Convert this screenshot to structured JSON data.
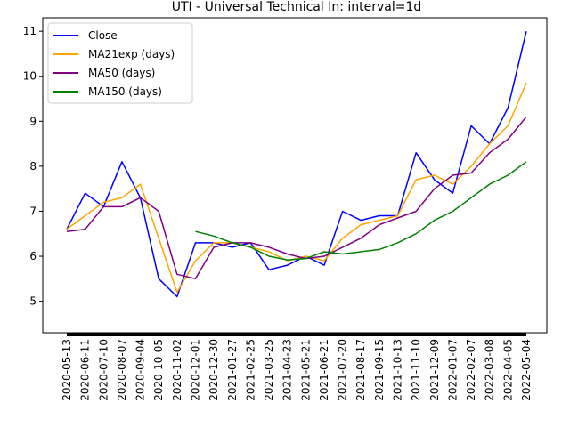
{
  "chart_data": {
    "type": "line",
    "title": "UTI - Universal Technical In: interval=1d",
    "xlabel": "",
    "ylabel": "",
    "ylim": [
      4.3,
      11.3
    ],
    "y_ticks": [
      5,
      6,
      7,
      8,
      9,
      10,
      11
    ],
    "x_tick_labels": [
      "2020-05-13",
      "2020-06-11",
      "2020-07-10",
      "2020-08-07",
      "2020-09-04",
      "2020-10-05",
      "2020-11-02",
      "2020-12-01",
      "2020-12-30",
      "2021-01-27",
      "2021-02-25",
      "2021-03-25",
      "2021-04-23",
      "2021-05-21",
      "2021-06-21",
      "2021-07-20",
      "2021-08-17",
      "2021-09-15",
      "2021-10-13",
      "2021-11-10",
      "2021-12-09",
      "2022-01-07",
      "2022-02-07",
      "2022-03-08",
      "2022-04-05",
      "2022-05-04"
    ],
    "grid": false,
    "legend_position": "upper-left",
    "x": [
      "2020-05-13",
      "2020-06-11",
      "2020-07-10",
      "2020-08-07",
      "2020-09-04",
      "2020-10-05",
      "2020-11-02",
      "2020-12-01",
      "2020-12-30",
      "2021-01-27",
      "2021-02-25",
      "2021-03-25",
      "2021-04-23",
      "2021-05-21",
      "2021-06-21",
      "2021-07-20",
      "2021-08-17",
      "2021-09-15",
      "2021-10-13",
      "2021-11-10",
      "2021-12-09",
      "2022-01-07",
      "2022-02-07",
      "2022-03-08",
      "2022-04-05",
      "2022-05-04"
    ],
    "series": [
      {
        "name": "Close",
        "color": "#0000ff",
        "values": [
          6.6,
          7.4,
          7.1,
          8.1,
          7.3,
          5.5,
          5.1,
          6.3,
          6.3,
          6.2,
          6.3,
          5.7,
          5.8,
          6.0,
          5.8,
          7.0,
          6.8,
          6.9,
          6.9,
          8.3,
          7.7,
          7.4,
          8.9,
          8.5,
          9.3,
          11.0
        ]
      },
      {
        "name": "MA21exp (days)",
        "color": "#ffa500",
        "values": [
          6.6,
          6.9,
          7.2,
          7.3,
          7.6,
          6.4,
          5.2,
          5.9,
          6.3,
          6.3,
          6.2,
          6.1,
          5.9,
          6.0,
          5.9,
          6.4,
          6.7,
          6.8,
          6.9,
          7.7,
          7.8,
          7.6,
          8.0,
          8.5,
          8.9,
          9.85
        ]
      },
      {
        "name": "MA50 (days)",
        "color": "#800080",
        "values": [
          6.55,
          6.6,
          7.1,
          7.1,
          7.3,
          7.0,
          5.6,
          5.5,
          6.2,
          6.3,
          6.3,
          6.2,
          6.05,
          5.95,
          6.0,
          6.2,
          6.4,
          6.7,
          6.85,
          7.0,
          7.5,
          7.8,
          7.85,
          8.3,
          8.6,
          9.1
        ]
      },
      {
        "name": "MA150 (days)",
        "color": "#008000",
        "values": [
          null,
          null,
          null,
          null,
          null,
          null,
          null,
          6.55,
          6.45,
          6.3,
          6.2,
          6.0,
          5.92,
          5.95,
          6.1,
          6.05,
          6.1,
          6.15,
          6.3,
          6.5,
          6.8,
          7.0,
          7.3,
          7.6,
          7.8,
          8.1
        ]
      }
    ]
  }
}
